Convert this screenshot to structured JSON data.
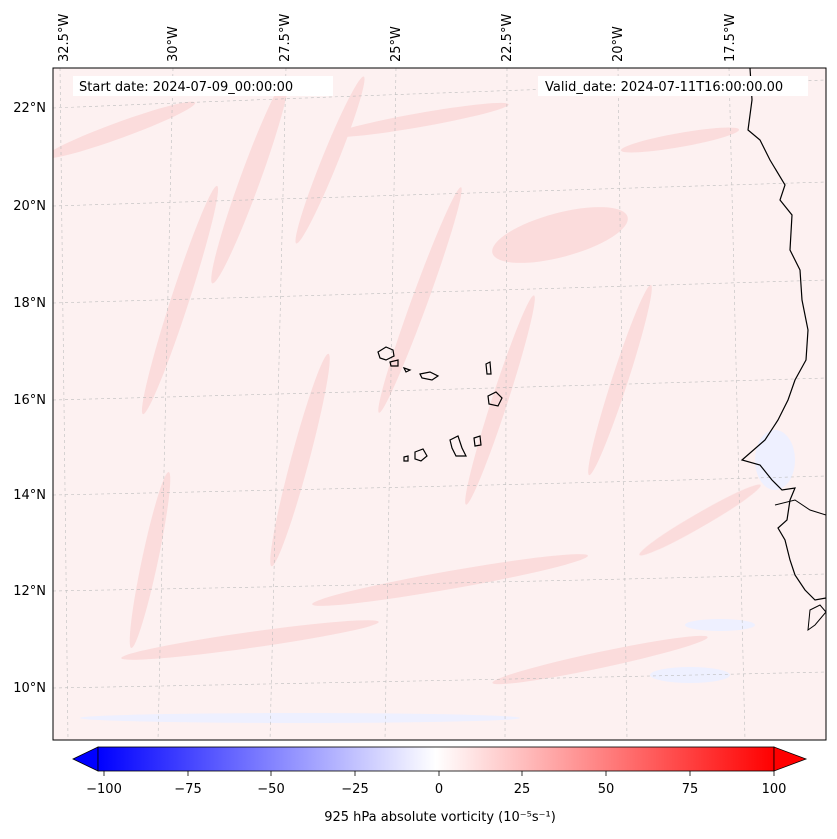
{
  "header": {
    "start_date": "Start date: 2024-07-09_00:00:00",
    "valid_date": "Valid_date: 2024-07-11T16:00:00.00"
  },
  "map": {
    "lon_labels": [
      "32.5°W",
      "30°W",
      "27.5°W",
      "25°W",
      "22.5°W",
      "20°W",
      "17.5°W"
    ],
    "lat_labels": [
      "22°N",
      "20°N",
      "18°N",
      "16°N",
      "14°N",
      "12°N",
      "10°N"
    ],
    "gridlines": true
  },
  "colorbar": {
    "label": "925 hPa absolute vorticity (10⁻⁵s⁻¹)",
    "ticks": [
      "−100",
      "−75",
      "−50",
      "−25",
      "0",
      "25",
      "50",
      "75",
      "100"
    ],
    "min_color": "#0000ff",
    "mid_color": "#ffffff",
    "max_color": "#ff0000"
  }
}
